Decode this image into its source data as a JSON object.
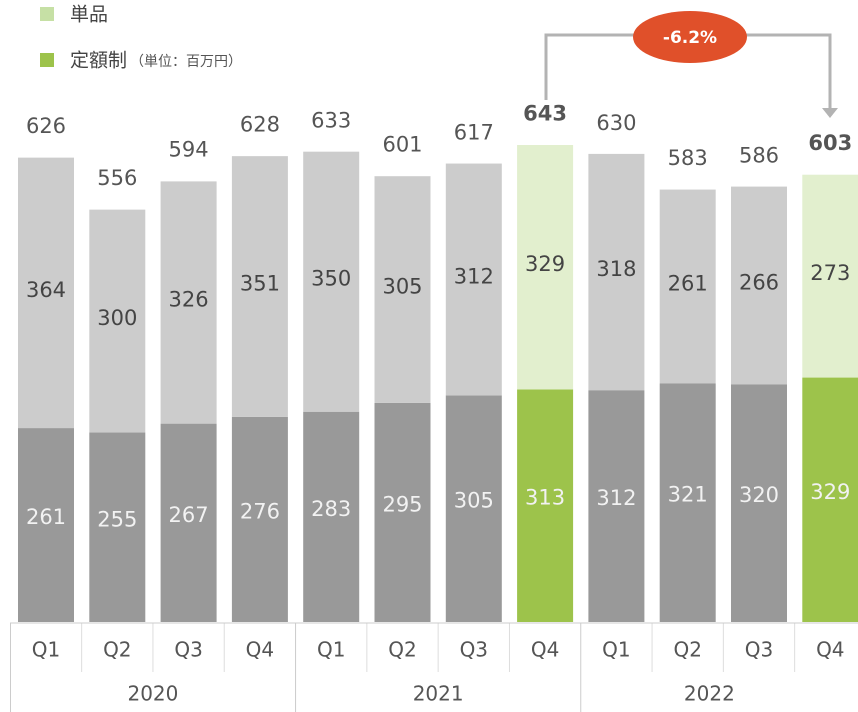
{
  "chart_data": {
    "type": "stacked_bar",
    "unit_note": "（単位：百万円）",
    "annotation": "-6.2%",
    "categories": [
      "Q1",
      "Q2",
      "Q3",
      "Q4",
      "Q1",
      "Q2",
      "Q3",
      "Q4",
      "Q1",
      "Q2",
      "Q3",
      "Q4"
    ],
    "years": [
      "2020",
      "2021",
      "2022"
    ],
    "series": [
      {
        "name": "定額制",
        "color": "#9dc34b",
        "colors": [
          "#999999",
          "#999999",
          "#999999",
          "#999999",
          "#999999",
          "#999999",
          "#999999",
          "#9dc34b",
          "#999999",
          "#999999",
          "#999999",
          "#9dc34b"
        ],
        "values": [
          261,
          255,
          267,
          276,
          283,
          295,
          305,
          313,
          312,
          321,
          320,
          329
        ]
      },
      {
        "name": "単品",
        "color": "#c6e0a5",
        "colors": [
          "#cccccc",
          "#cccccc",
          "#cccccc",
          "#cccccc",
          "#cccccc",
          "#cccccc",
          "#cccccc",
          "#e2efce",
          "#cccccc",
          "#cccccc",
          "#cccccc",
          "#e2efce"
        ],
        "values": [
          364,
          300,
          326,
          351,
          350,
          305,
          312,
          329,
          318,
          261,
          266,
          273
        ]
      }
    ],
    "totals": [
      626,
      556,
      594,
      628,
      633,
      601,
      617,
      643,
      630,
      583,
      586,
      603
    ],
    "totals_bold": [
      false,
      false,
      false,
      false,
      false,
      false,
      false,
      true,
      false,
      false,
      false,
      true
    ]
  }
}
